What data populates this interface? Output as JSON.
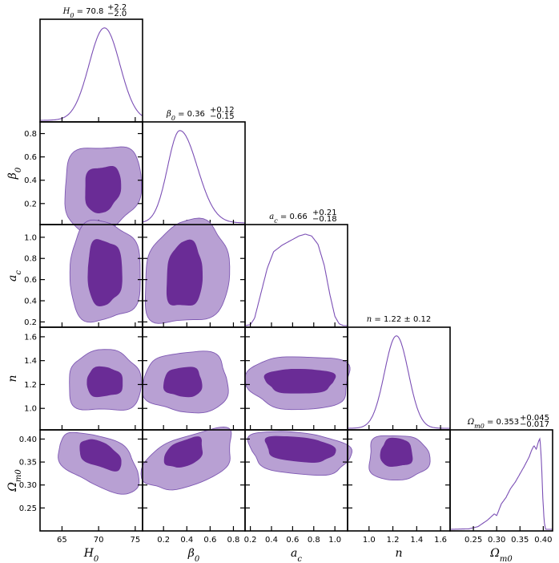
{
  "chart_data": {
    "type": "corner",
    "title": "",
    "colors": {
      "marginal": "#7b4fb5",
      "region_95": "#b8a0d3",
      "region_68": "#6a2c96"
    },
    "parameters": [
      {
        "key": "H0",
        "symbol": "H",
        "sub": "0",
        "range": [
          62,
          76
        ],
        "ticks": [
          65,
          70,
          75
        ],
        "tick_labels": [
          "65",
          "70",
          "75"
        ],
        "title": {
          "value": "70.8",
          "plus": "+2.2",
          "minus": "−2.0",
          "symmetric": false
        }
      },
      {
        "key": "beta0",
        "symbol": "β",
        "sub": "0",
        "range": [
          0.02,
          0.9
        ],
        "ticks": [
          0.2,
          0.4,
          0.6,
          0.8
        ],
        "tick_labels": [
          "0.2",
          "0.4",
          "0.6",
          "0.8"
        ],
        "title": {
          "value": "0.36",
          "plus": "+0.12",
          "minus": "−0.15",
          "symmetric": false
        }
      },
      {
        "key": "ac",
        "symbol": "a",
        "sub": "c",
        "range": [
          0.15,
          1.12
        ],
        "ticks": [
          0.2,
          0.4,
          0.6,
          0.8,
          1.0
        ],
        "tick_labels": [
          "0.2",
          "0.4",
          "0.6",
          "0.8",
          "1.0"
        ],
        "title": {
          "value": "0.66",
          "plus": "+0.21",
          "minus": "−0.18",
          "symmetric": false
        }
      },
      {
        "key": "n",
        "symbol": "n",
        "sub": "",
        "range": [
          0.82,
          1.68
        ],
        "ticks": [
          1.0,
          1.2,
          1.4,
          1.6
        ],
        "tick_labels": [
          "1.0",
          "1.2",
          "1.4",
          "1.6"
        ],
        "title": {
          "value": "1.22",
          "pm": "± 0.12",
          "symmetric": true
        }
      },
      {
        "key": "Om0",
        "symbol": "Ω",
        "sub": "m0",
        "range": [
          0.2,
          0.42
        ],
        "ticks": [
          0.25,
          0.3,
          0.35,
          0.4
        ],
        "tick_labels": [
          "0.25",
          "0.30",
          "0.35",
          "0.40"
        ],
        "title": {
          "value": "0.353",
          "plus": "+0.045",
          "minus": "−0.017",
          "symmetric": false
        }
      }
    ],
    "marginals": [
      {
        "param": "H0",
        "mean": 70.8,
        "sigma": 2.1,
        "skew": 0
      },
      {
        "param": "beta0",
        "mean": 0.34,
        "sigma": 0.12,
        "skew": 0.25
      },
      {
        "param": "ac",
        "points": [
          [
            0.15,
            0
          ],
          [
            0.2,
            0.01
          ],
          [
            0.24,
            0.08
          ],
          [
            0.3,
            0.35
          ],
          [
            0.36,
            0.62
          ],
          [
            0.42,
            0.8
          ],
          [
            0.5,
            0.87
          ],
          [
            0.58,
            0.92
          ],
          [
            0.66,
            0.97
          ],
          [
            0.72,
            0.99
          ],
          [
            0.78,
            0.97
          ],
          [
            0.84,
            0.88
          ],
          [
            0.9,
            0.65
          ],
          [
            0.95,
            0.35
          ],
          [
            1.0,
            0.1
          ],
          [
            1.04,
            0.02
          ],
          [
            1.08,
            0
          ],
          [
            1.12,
            0
          ]
        ]
      },
      {
        "param": "n",
        "mean": 1.23,
        "sigma": 0.1,
        "skew": 0
      },
      {
        "param": "Om0",
        "points": [
          [
            0.2,
            0
          ],
          [
            0.24,
            0.005
          ],
          [
            0.26,
            0.03
          ],
          [
            0.28,
            0.1
          ],
          [
            0.295,
            0.17
          ],
          [
            0.3,
            0.15
          ],
          [
            0.31,
            0.28
          ],
          [
            0.32,
            0.35
          ],
          [
            0.33,
            0.45
          ],
          [
            0.34,
            0.52
          ],
          [
            0.35,
            0.61
          ],
          [
            0.36,
            0.7
          ],
          [
            0.37,
            0.8
          ],
          [
            0.375,
            0.87
          ],
          [
            0.38,
            0.92
          ],
          [
            0.385,
            0.88
          ],
          [
            0.39,
            0.97
          ],
          [
            0.393,
            1.0
          ],
          [
            0.396,
            0.75
          ],
          [
            0.399,
            0.35
          ],
          [
            0.402,
            0.08
          ],
          [
            0.405,
            0
          ],
          [
            0.42,
            0
          ]
        ]
      }
    ],
    "contours": [
      {
        "x": "H0",
        "y": "beta0",
        "c68": {
          "cx": 70.5,
          "cy": 0.33,
          "rx": 2.4,
          "ry": 0.19,
          "tilt": 0.2
        },
        "c95": {
          "cx": 70.4,
          "cy": 0.34,
          "rx": 5.2,
          "ry": 0.36,
          "tilt": 0.15
        }
      },
      {
        "x": "H0",
        "y": "ac",
        "c68": {
          "cx": 70.8,
          "cy": 0.67,
          "rx": 2.3,
          "ry": 0.3,
          "tilt": 0
        },
        "c95": {
          "cx": 70.8,
          "cy": 0.67,
          "rx": 4.8,
          "ry": 0.46,
          "tilt": 0
        }
      },
      {
        "x": "H0",
        "y": "n",
        "c68": {
          "cx": 70.8,
          "cy": 1.22,
          "rx": 2.4,
          "ry": 0.12,
          "tilt": 0
        },
        "c95": {
          "cx": 70.8,
          "cy": 1.22,
          "rx": 4.9,
          "ry": 0.25,
          "tilt": 0
        }
      },
      {
        "x": "H0",
        "y": "Om0",
        "c68": {
          "cx": 70.2,
          "cy": 0.365,
          "rx": 2.8,
          "ry": 0.027,
          "tilt": -0.35
        },
        "c95": {
          "cx": 70.1,
          "cy": 0.35,
          "rx": 5.4,
          "ry": 0.055,
          "tilt": -0.35
        }
      },
      {
        "x": "beta0",
        "y": "ac",
        "c68": {
          "cx": 0.38,
          "cy": 0.64,
          "rx": 0.15,
          "ry": 0.3,
          "tilt": 0.2
        },
        "c95": {
          "cx": 0.4,
          "cy": 0.65,
          "rx": 0.36,
          "ry": 0.47,
          "tilt": 0.18
        }
      },
      {
        "x": "beta0",
        "y": "n",
        "c68": {
          "cx": 0.37,
          "cy": 1.22,
          "rx": 0.16,
          "ry": 0.12,
          "tilt": 0
        },
        "c95": {
          "cx": 0.4,
          "cy": 1.22,
          "rx": 0.36,
          "ry": 0.25,
          "tilt": 0
        }
      },
      {
        "x": "beta0",
        "y": "Om0",
        "c68": {
          "cx": 0.38,
          "cy": 0.37,
          "rx": 0.16,
          "ry": 0.028,
          "tilt": 0.3
        },
        "c95": {
          "cx": 0.42,
          "cy": 0.355,
          "rx": 0.38,
          "ry": 0.055,
          "tilt": 0.3
        }
      },
      {
        "x": "ac",
        "y": "n",
        "c68": {
          "cx": 0.67,
          "cy": 1.23,
          "rx": 0.32,
          "ry": 0.1,
          "tilt": 0
        },
        "c95": {
          "cx": 0.67,
          "cy": 1.22,
          "rx": 0.48,
          "ry": 0.22,
          "tilt": 0
        }
      },
      {
        "x": "ac",
        "y": "Om0",
        "c68": {
          "cx": 0.66,
          "cy": 0.378,
          "rx": 0.32,
          "ry": 0.026,
          "tilt": -0.1
        },
        "c95": {
          "cx": 0.66,
          "cy": 0.37,
          "rx": 0.47,
          "ry": 0.045,
          "tilt": -0.1
        }
      },
      {
        "x": "n",
        "y": "Om0",
        "c68": {
          "cx": 1.23,
          "cy": 0.37,
          "rx": 0.13,
          "ry": 0.03,
          "tilt": 0
        },
        "c95": {
          "cx": 1.24,
          "cy": 0.36,
          "rx": 0.25,
          "ry": 0.048,
          "tilt": 0
        }
      }
    ]
  }
}
